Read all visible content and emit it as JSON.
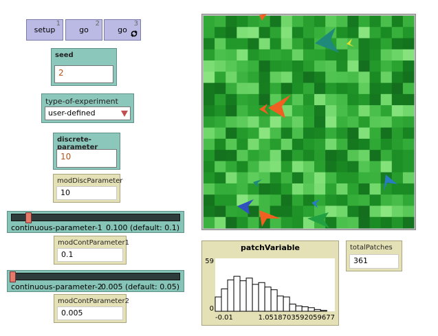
{
  "buttons": [
    {
      "label": "setup",
      "key": "1"
    },
    {
      "label": "go",
      "key": "2"
    },
    {
      "label": "go",
      "key": "3"
    }
  ],
  "seed": {
    "label": "seed",
    "value": "2"
  },
  "chooser": {
    "label": "type-of-experiment",
    "value": "user-defined"
  },
  "discrete_input": {
    "label": "discrete-parameter",
    "value": "10"
  },
  "monitors": [
    {
      "label": "modDiscParameter",
      "value": "10"
    },
    {
      "label": "modContParameter1",
      "value": "0.1"
    },
    {
      "label": "modContParameter2",
      "value": "0.005"
    },
    {
      "label": "totalPatches",
      "value": "361"
    }
  ],
  "sliders": [
    {
      "label": "continuous-parameter-1",
      "value": "0.100 (default: 0.1)"
    },
    {
      "label": "continuous-parameter-2",
      "value": "0.005 (default: 0.05)"
    }
  ],
  "chart_data": {
    "type": "histogram",
    "title": "patchVariable",
    "bins": [
      -0.01,
      0.045,
      0.1,
      0.155,
      0.21,
      0.265,
      0.32,
      0.375,
      0.43,
      0.485,
      0.54,
      0.595,
      0.65,
      0.705,
      0.76,
      0.815,
      0.87,
      0.925,
      0.98
    ],
    "values": [
      16,
      25,
      35,
      39,
      34,
      37,
      30,
      32,
      27,
      24,
      17,
      16,
      8,
      6,
      5,
      4,
      2,
      1
    ],
    "color": "#000000",
    "xlim": [
      -0.01,
      1.0518703592059677
    ],
    "ylim": [
      0,
      59
    ],
    "xticks": [
      -0.01,
      1.0518703592059677
    ],
    "yticks": [
      0,
      59
    ]
  }
}
